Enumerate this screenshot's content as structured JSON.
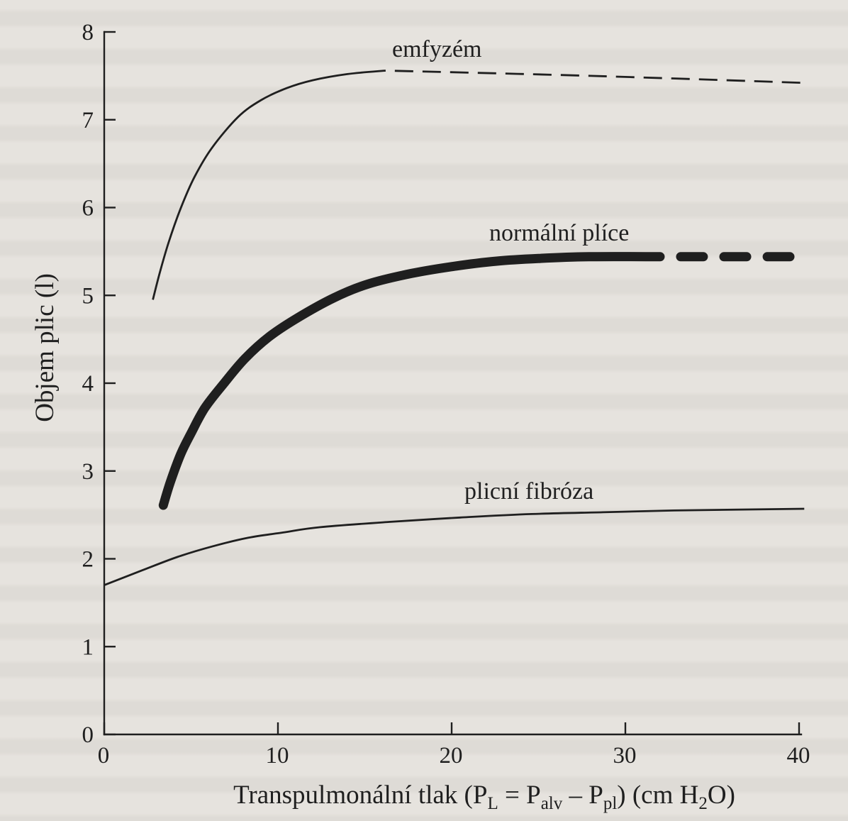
{
  "colors": {
    "paper": "#e6e3de",
    "ink": "#1f1f1f"
  },
  "chart_data": {
    "type": "line",
    "ylabel": "Objem plic (l)",
    "xlabel": [
      {
        "text": "Transpulmonální tlak (P"
      },
      {
        "sub": "L"
      },
      {
        "text": " = P"
      },
      {
        "sub": "alv"
      },
      {
        "text": " – P"
      },
      {
        "sub": "pl"
      },
      {
        "text": ") (cm H"
      },
      {
        "sub": "2"
      },
      {
        "text": "O)"
      }
    ],
    "xlim": [
      0,
      40
    ],
    "ylim": [
      0,
      8
    ],
    "xticks": [
      0,
      10,
      20,
      30,
      40
    ],
    "yticks": [
      0,
      1,
      2,
      3,
      4,
      5,
      6,
      7,
      8
    ],
    "grid": false,
    "series": [
      {
        "name": "emfyzém",
        "x": [
          2.8,
          3.2,
          3.7,
          4.4,
          5.2,
          6.2,
          7.7,
          9.0,
          10.5,
          12.0,
          14.0,
          16.2
        ],
        "y": [
          4.95,
          5.26,
          5.6,
          5.99,
          6.35,
          6.68,
          7.03,
          7.22,
          7.36,
          7.45,
          7.52,
          7.56
        ],
        "dashed": {
          "x": [
            16.2,
            28.0,
            40.3
          ],
          "y": [
            7.56,
            7.5,
            7.42
          ]
        }
      },
      {
        "name": "normální plíce",
        "x": [
          3.4,
          3.8,
          4.4,
          5.0,
          5.8,
          6.9,
          8.1,
          9.5,
          11.1,
          13.2,
          15.2,
          17.7,
          20.1,
          22.6,
          25.0,
          27.9,
          32.0
        ],
        "y": [
          2.61,
          2.87,
          3.19,
          3.43,
          3.72,
          4.0,
          4.28,
          4.53,
          4.74,
          4.97,
          5.13,
          5.25,
          5.33,
          5.39,
          5.42,
          5.44,
          5.44
        ],
        "dashed": {
          "x": [
            32.0,
            40.3
          ],
          "y": [
            5.44,
            5.44
          ]
        }
      },
      {
        "name": "plicní fibróza",
        "x": [
          0,
          2.2,
          4.2,
          6.2,
          8.3,
          10.3,
          12.4,
          16.4,
          20.5,
          24.6,
          28.7,
          32.8,
          40.3
        ],
        "y": [
          1.7,
          1.87,
          2.02,
          2.14,
          2.24,
          2.3,
          2.36,
          2.42,
          2.47,
          2.51,
          2.53,
          2.55,
          2.57
        ]
      }
    ]
  }
}
